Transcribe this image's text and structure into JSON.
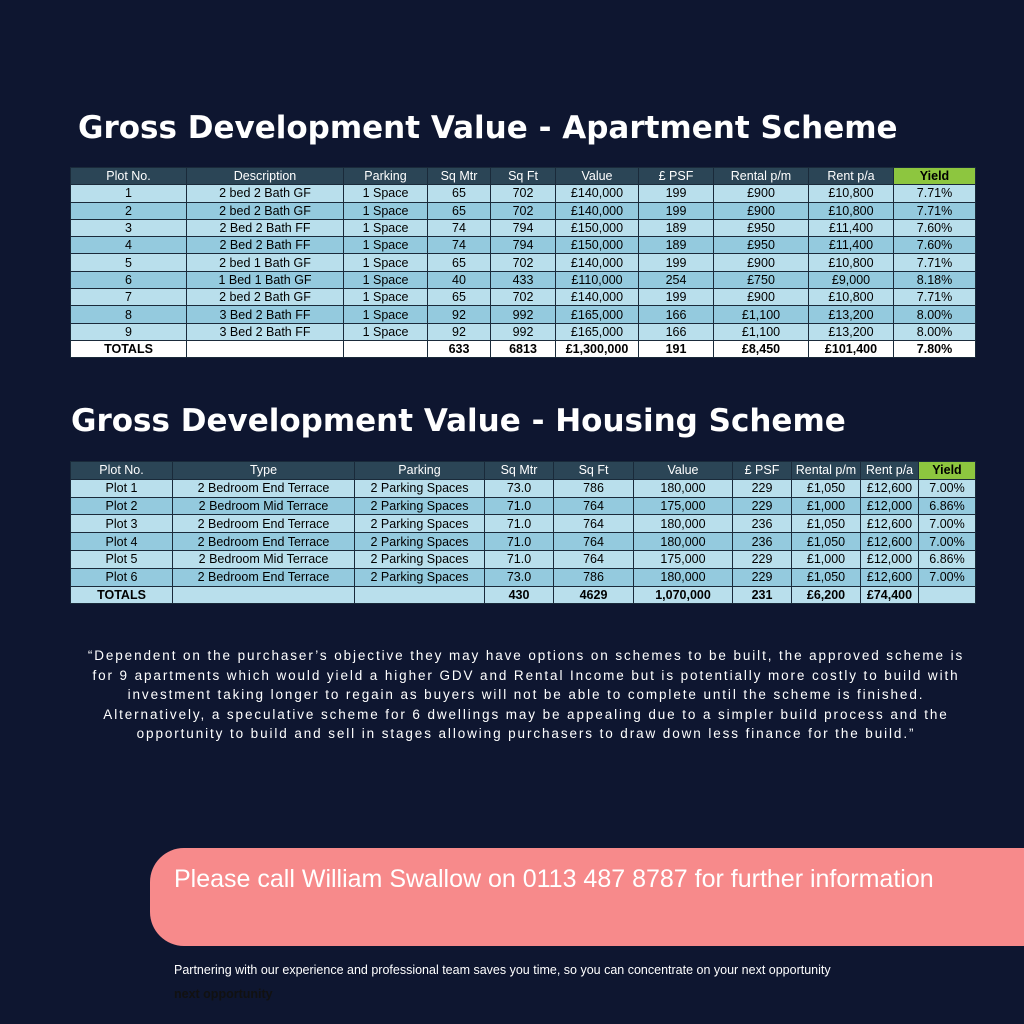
{
  "apartment": {
    "title": "Gross Development Value - Apartment Scheme",
    "header": [
      "Plot No.",
      "Description",
      "Parking",
      "Sq Mtr",
      "Sq Ft",
      "Value",
      "£ PSF",
      "Rental p/m",
      "Rent p/a",
      "Yield"
    ],
    "rows": [
      [
        "1",
        "2 bed 2 Bath GF",
        "1 Space",
        "65",
        "702",
        "£140,000",
        "199",
        "£900",
        "£10,800",
        "7.71%"
      ],
      [
        "2",
        "2 bed 2 Bath GF",
        "1 Space",
        "65",
        "702",
        "£140,000",
        "199",
        "£900",
        "£10,800",
        "7.71%"
      ],
      [
        "3",
        "2 Bed 2 Bath FF",
        "1 Space",
        "74",
        "794",
        "£150,000",
        "189",
        "£950",
        "£11,400",
        "7.60%"
      ],
      [
        "4",
        "2 Bed 2 Bath FF",
        "1 Space",
        "74",
        "794",
        "£150,000",
        "189",
        "£950",
        "£11,400",
        "7.60%"
      ],
      [
        "5",
        "2 bed 1 Bath GF",
        "1 Space",
        "65",
        "702",
        "£140,000",
        "199",
        "£900",
        "£10,800",
        "7.71%"
      ],
      [
        "6",
        "1 Bed 1 Bath GF",
        "1 Space",
        "40",
        "433",
        "£110,000",
        "254",
        "£750",
        "£9,000",
        "8.18%"
      ],
      [
        "7",
        "2 bed 2 Bath GF",
        "1 Space",
        "65",
        "702",
        "£140,000",
        "199",
        "£900",
        "£10,800",
        "7.71%"
      ],
      [
        "8",
        "3 Bed 2 Bath FF",
        "1 Space",
        "92",
        "992",
        "£165,000",
        "166",
        "£1,100",
        "£13,200",
        "8.00%"
      ],
      [
        "9",
        "3 Bed 2 Bath FF",
        "1 Space",
        "92",
        "992",
        "£165,000",
        "166",
        "£1,100",
        "£13,200",
        "8.00%"
      ]
    ],
    "totals": [
      "TOTALS",
      null,
      null,
      "633",
      "6813",
      "£1,300,000",
      "191",
      "£8,450",
      "£101,400",
      "7.80%"
    ]
  },
  "housing": {
    "title": "Gross Development Value - Housing Scheme",
    "header": [
      "Plot No.",
      "Type",
      "Parking",
      "Sq Mtr",
      "Sq Ft",
      "Value",
      "£ PSF",
      "Rental p/m",
      "Rent p/a",
      "Yield"
    ],
    "rows": [
      [
        "Plot 1",
        "2 Bedroom End Terrace",
        "2 Parking Spaces",
        "73.0",
        "786",
        "180,000",
        "229",
        "£1,050",
        "£12,600",
        "7.00%"
      ],
      [
        "Plot 2",
        "2 Bedroom Mid Terrace",
        "2 Parking Spaces",
        "71.0",
        "764",
        "175,000",
        "229",
        "£1,000",
        "£12,000",
        "6.86%"
      ],
      [
        "Plot 3",
        "2 Bedroom End Terrace",
        "2 Parking Spaces",
        "71.0",
        "764",
        "180,000",
        "236",
        "£1,050",
        "£12,600",
        "7.00%"
      ],
      [
        "Plot 4",
        "2 Bedroom End Terrace",
        "2 Parking Spaces",
        "71.0",
        "764",
        "180,000",
        "236",
        "£1,050",
        "£12,600",
        "7.00%"
      ],
      [
        "Plot 5",
        "2 Bedroom Mid Terrace",
        "2 Parking Spaces",
        "71.0",
        "764",
        "175,000",
        "229",
        "£1,000",
        "£12,000",
        "6.86%"
      ],
      [
        "Plot 6",
        "2 Bedroom End Terrace",
        "2 Parking Spaces",
        "73.0",
        "786",
        "180,000",
        "229",
        "£1,050",
        "£12,600",
        "7.00%"
      ]
    ],
    "totals": [
      "TOTALS",
      null,
      null,
      "430",
      "4629",
      "1,070,000",
      "231",
      "£6,200",
      "£74,400",
      null
    ]
  },
  "quote": "“Dependent on the purchaser’s objective they may have options on schemes to be built, the approved scheme is for 9 apartments which would yield a higher GDV and Rental Income but is potentially more costly to build with investment taking longer to regain as buyers will not be able to complete until the scheme is finished. Alternatively, a speculative scheme for 6 dwellings may be appealing due to a simpler build process and the opportunity to build and sell in stages allowing purchasers to draw down less finance for the build.”",
  "call": "Please call William Swallow on 0113 487 8787 for further information",
  "footer": {
    "text": "Partnering with our experience and professional team saves you time, so you can concentrate on your next opportunity",
    "echo": "next opportunity"
  }
}
